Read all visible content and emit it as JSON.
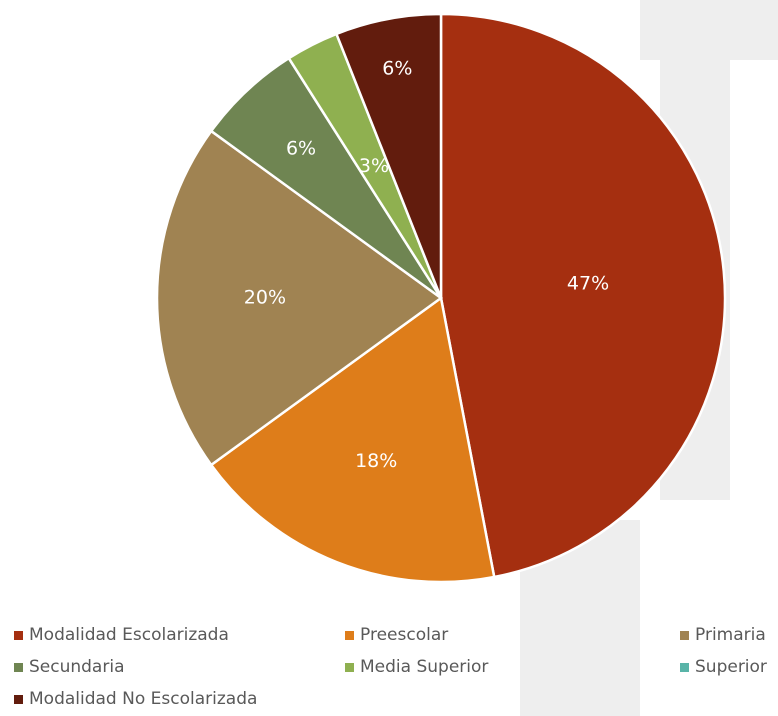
{
  "chart_data": {
    "type": "pie",
    "title": "",
    "legend_position": "bottom",
    "categories": [
      "Modalidad Escolarizada",
      "Preescolar",
      "Primaria",
      "Secundaria",
      "Media Superior",
      "Superior",
      "Modalidad No Escolarizada"
    ],
    "values": [
      47,
      18,
      20,
      6,
      3,
      0,
      6
    ],
    "labels": [
      "47%",
      "18%",
      "20%",
      "6%",
      "3%",
      "",
      "6%"
    ],
    "colors": [
      "#A52F10",
      "#DE7D1A",
      "#A08352",
      "#6F8552",
      "#8FB050",
      "#59B4A8",
      "#621C0D"
    ]
  }
}
